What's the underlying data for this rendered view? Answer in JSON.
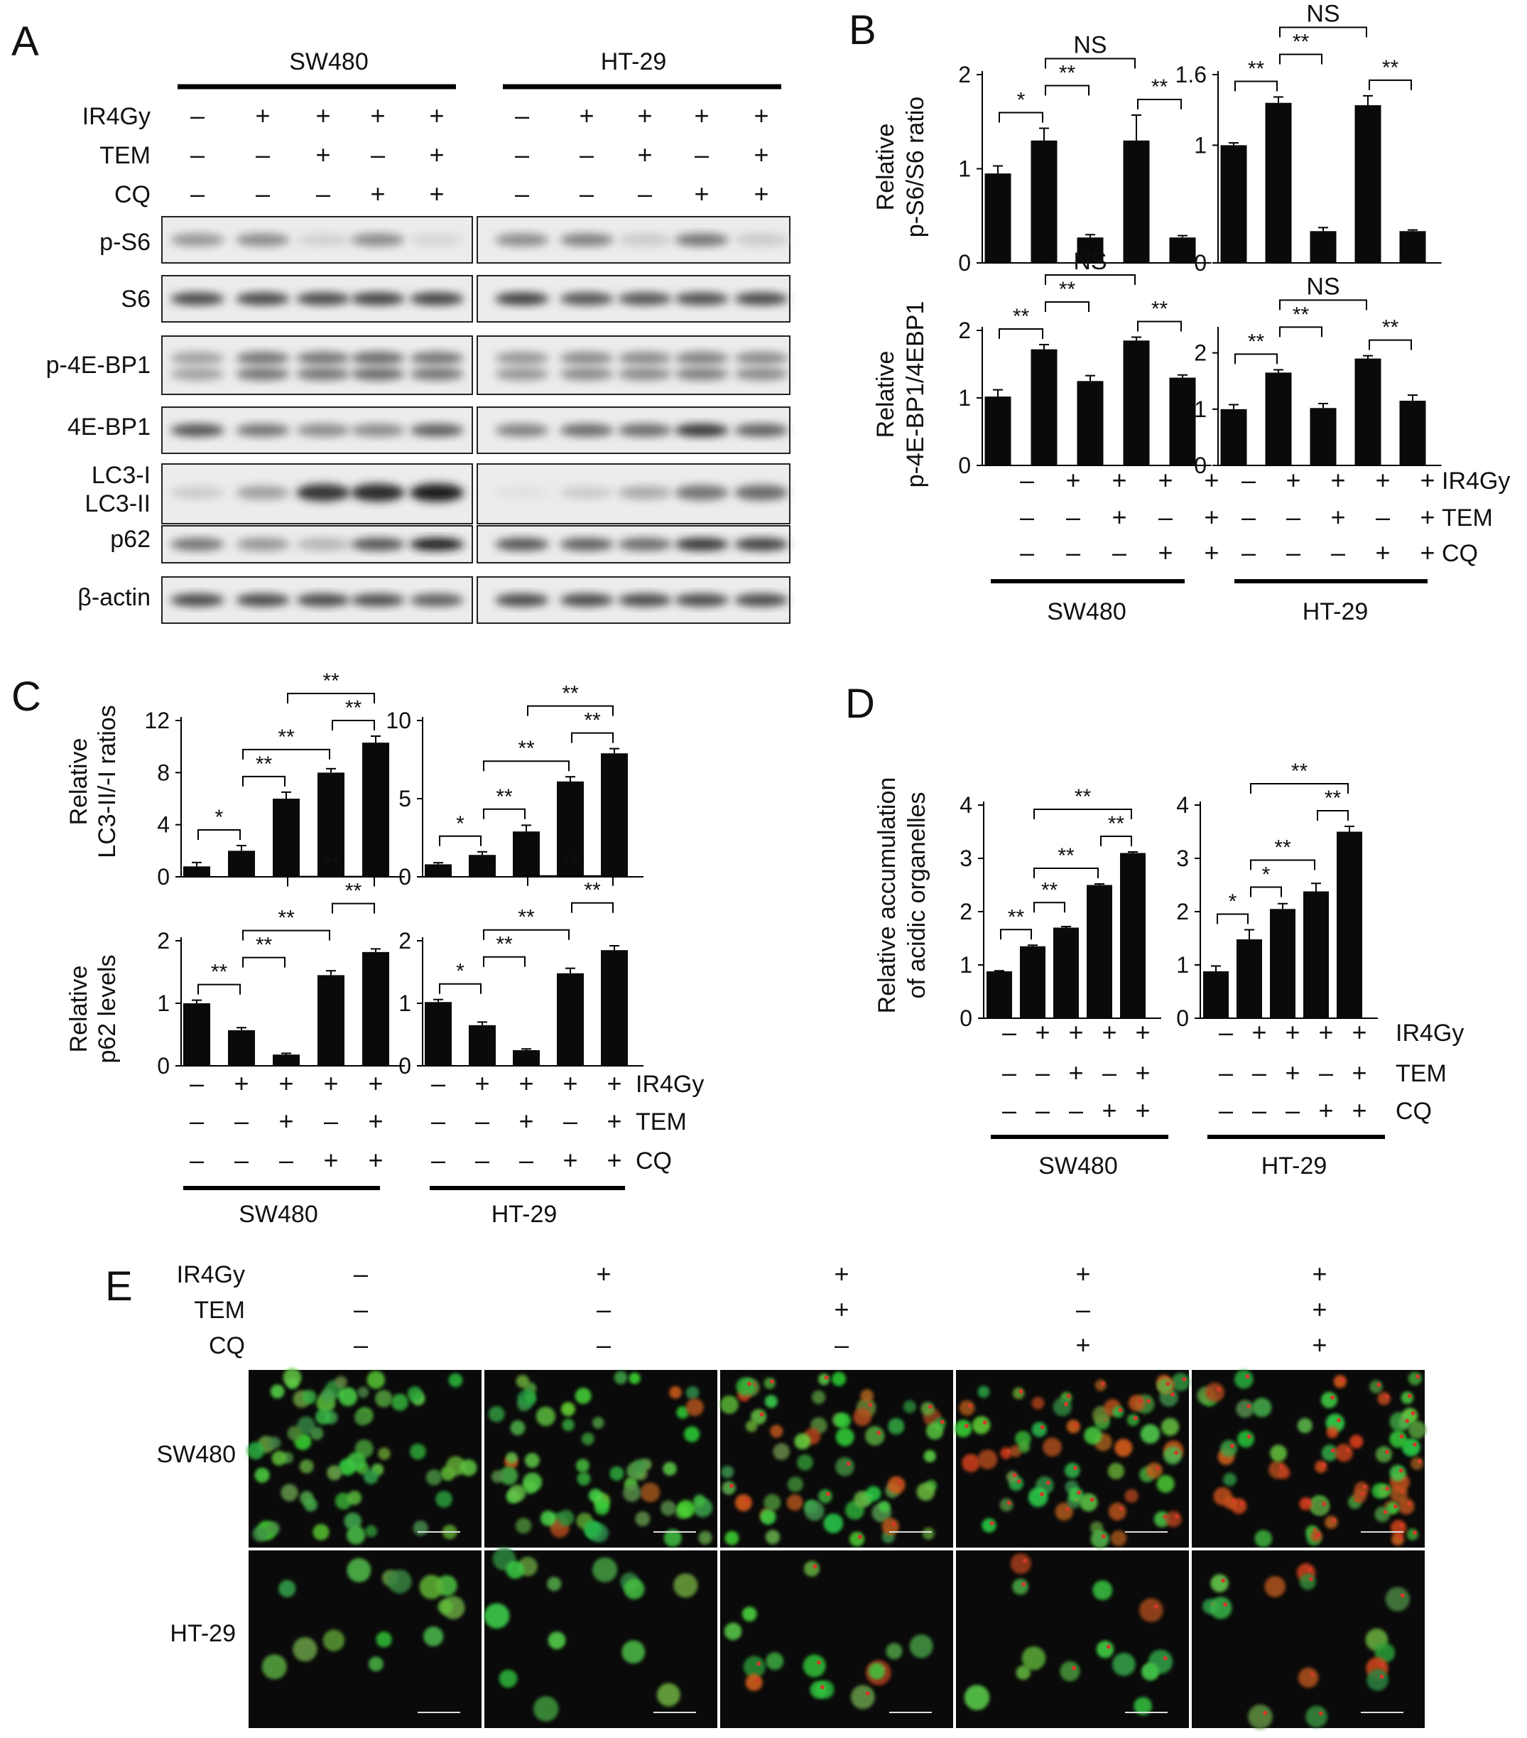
{
  "panels": {
    "A": "A",
    "B": "B",
    "C": "C",
    "D": "D",
    "E": "E"
  },
  "cell_lines": [
    "SW480",
    "HT-29"
  ],
  "treatments": [
    "IR4Gy",
    "TEM",
    "CQ"
  ],
  "conditions": {
    "IR4Gy": [
      "–",
      "+",
      "+",
      "+",
      "+"
    ],
    "TEM": [
      "–",
      "–",
      "+",
      "–",
      "+"
    ],
    "CQ": [
      "–",
      "–",
      "–",
      "+",
      "+"
    ]
  },
  "blot_rows": [
    "p-S6",
    "S6",
    "p-4E-BP1",
    "4E-BP1",
    "LC3-I",
    "LC3-II",
    "p62",
    "β-actin"
  ],
  "blot_intensity": {
    "SW480": {
      "p-S6": [
        0.4,
        0.45,
        0.12,
        0.45,
        0.1
      ],
      "S6": [
        0.75,
        0.75,
        0.75,
        0.78,
        0.78
      ],
      "p-4E-BP1": [
        0.35,
        0.55,
        0.55,
        0.6,
        0.55
      ],
      "4E-BP1": [
        0.7,
        0.55,
        0.45,
        0.45,
        0.65
      ],
      "LC3": [
        0.15,
        0.35,
        0.85,
        0.9,
        0.95
      ],
      "p62": [
        0.55,
        0.4,
        0.25,
        0.7,
        0.95
      ],
      "b-actin": [
        0.75,
        0.75,
        0.75,
        0.72,
        0.65
      ]
    },
    "HT-29": {
      "p-S6": [
        0.45,
        0.5,
        0.15,
        0.55,
        0.15
      ],
      "S6": [
        0.8,
        0.7,
        0.7,
        0.72,
        0.75
      ],
      "p-4E-BP1": [
        0.4,
        0.45,
        0.45,
        0.5,
        0.45
      ],
      "4E-BP1": [
        0.5,
        0.6,
        0.6,
        0.85,
        0.65
      ],
      "LC3": [
        0.05,
        0.15,
        0.3,
        0.55,
        0.6
      ],
      "p62": [
        0.7,
        0.65,
        0.6,
        0.85,
        0.8
      ],
      "b-actin": [
        0.75,
        0.75,
        0.75,
        0.75,
        0.75
      ]
    }
  },
  "chart_data": [
    {
      "panel": "B",
      "cell_line": "SW480",
      "type": "bar",
      "ylabel": "Relative p-S6/S6 ratio",
      "ylim": [
        0,
        2
      ],
      "yticks": [
        0,
        1,
        2
      ],
      "values": [
        0.95,
        1.3,
        0.27,
        1.3,
        0.27
      ],
      "errors": [
        0.08,
        0.13,
        0.03,
        0.27,
        0.02
      ],
      "annotations": [
        {
          "a": 0,
          "b": 1,
          "label": "*"
        },
        {
          "a": 1,
          "b": 2,
          "label": "**"
        },
        {
          "a": 3,
          "b": 4,
          "label": "**"
        },
        {
          "a": 1,
          "b": 3,
          "label": "NS"
        }
      ]
    },
    {
      "panel": "B",
      "cell_line": "HT-29",
      "type": "bar",
      "ylabel": "Relative p-S6/S6 ratio",
      "ylim": [
        0,
        1.6
      ],
      "yticks": [
        0,
        1,
        1.6
      ],
      "values": [
        1.0,
        1.36,
        0.27,
        1.34,
        0.27
      ],
      "errors": [
        0.02,
        0.05,
        0.03,
        0.08,
        0.01
      ],
      "annotations": [
        {
          "a": 0,
          "b": 1,
          "label": "**"
        },
        {
          "a": 1,
          "b": 2,
          "label": "**"
        },
        {
          "a": 3,
          "b": 4,
          "label": "**"
        },
        {
          "a": 1,
          "b": 3,
          "label": "NS"
        }
      ]
    },
    {
      "panel": "B",
      "cell_line": "SW480",
      "type": "bar",
      "ylabel": "Relative p-4E-BP1/4EBP1",
      "ylim": [
        0,
        2
      ],
      "yticks": [
        0,
        1,
        2
      ],
      "values": [
        1.02,
        1.72,
        1.25,
        1.85,
        1.3
      ],
      "errors": [
        0.1,
        0.07,
        0.08,
        0.05,
        0.04
      ],
      "annotations": [
        {
          "a": 0,
          "b": 1,
          "label": "**"
        },
        {
          "a": 1,
          "b": 2,
          "label": "**"
        },
        {
          "a": 3,
          "b": 4,
          "label": "**"
        },
        {
          "a": 1,
          "b": 3,
          "label": "NS"
        }
      ]
    },
    {
      "panel": "B",
      "cell_line": "HT-29",
      "type": "bar",
      "ylabel": "Relative p-4E-BP1/4EBP1",
      "ylim": [
        0,
        2.4
      ],
      "yticks": [
        0,
        1,
        2
      ],
      "values": [
        1.0,
        1.65,
        1.02,
        1.9,
        1.15
      ],
      "errors": [
        0.08,
        0.05,
        0.08,
        0.05,
        0.1
      ],
      "annotations": [
        {
          "a": 0,
          "b": 1,
          "label": "**"
        },
        {
          "a": 1,
          "b": 2,
          "label": "**"
        },
        {
          "a": 3,
          "b": 4,
          "label": "**"
        },
        {
          "a": 1,
          "b": 3,
          "label": "NS"
        }
      ]
    },
    {
      "panel": "C",
      "cell_line": "SW480",
      "type": "bar",
      "ylabel": "Relative LC3-II/-I ratios",
      "ylim": [
        0,
        12
      ],
      "yticks": [
        0,
        4,
        8,
        12
      ],
      "values": [
        0.8,
        2.0,
        6.0,
        8.0,
        10.3
      ],
      "errors": [
        0.3,
        0.4,
        0.5,
        0.3,
        0.5
      ],
      "annotations": [
        {
          "a": 0,
          "b": 1,
          "label": "*"
        },
        {
          "a": 1,
          "b": 2,
          "label": "**"
        },
        {
          "a": 1,
          "b": 3,
          "label": "**"
        },
        {
          "a": 3,
          "b": 4,
          "label": "**"
        },
        {
          "a": 2,
          "b": 4,
          "label": "**"
        }
      ]
    },
    {
      "panel": "C",
      "cell_line": "HT-29",
      "type": "bar",
      "ylabel": "Relative LC3-II/-I ratios",
      "ylim": [
        0,
        10
      ],
      "yticks": [
        0,
        5,
        10
      ],
      "values": [
        0.8,
        1.4,
        2.9,
        6.1,
        7.9
      ],
      "errors": [
        0.1,
        0.2,
        0.4,
        0.3,
        0.3
      ],
      "annotations": [
        {
          "a": 0,
          "b": 1,
          "label": "*"
        },
        {
          "a": 1,
          "b": 2,
          "label": "**"
        },
        {
          "a": 1,
          "b": 3,
          "label": "**"
        },
        {
          "a": 3,
          "b": 4,
          "label": "**"
        },
        {
          "a": 2,
          "b": 4,
          "label": "**"
        }
      ]
    },
    {
      "panel": "C",
      "cell_line": "SW480",
      "type": "bar",
      "ylabel": "Relative p62 levels",
      "ylim": [
        0,
        2
      ],
      "yticks": [
        0,
        1,
        2
      ],
      "values": [
        1.0,
        0.57,
        0.18,
        1.45,
        1.82
      ],
      "errors": [
        0.05,
        0.04,
        0.02,
        0.07,
        0.05
      ],
      "annotations": [
        {
          "a": 0,
          "b": 1,
          "label": "**"
        },
        {
          "a": 1,
          "b": 2,
          "label": "**"
        },
        {
          "a": 1,
          "b": 3,
          "label": "**"
        },
        {
          "a": 3,
          "b": 4,
          "label": "**"
        },
        {
          "a": 2,
          "b": 4,
          "label": "**"
        }
      ]
    },
    {
      "panel": "C",
      "cell_line": "HT-29",
      "type": "bar",
      "ylabel": "Relative p62 levels",
      "ylim": [
        0,
        2
      ],
      "yticks": [
        0,
        1,
        2
      ],
      "values": [
        1.02,
        0.65,
        0.25,
        1.48,
        1.85
      ],
      "errors": [
        0.04,
        0.05,
        0.02,
        0.08,
        0.07
      ],
      "annotations": [
        {
          "a": 0,
          "b": 1,
          "label": "*"
        },
        {
          "a": 1,
          "b": 2,
          "label": "**"
        },
        {
          "a": 1,
          "b": 3,
          "label": "**"
        },
        {
          "a": 3,
          "b": 4,
          "label": "**"
        },
        {
          "a": 2,
          "b": 4,
          "label": "**"
        }
      ]
    },
    {
      "panel": "D",
      "cell_line": "SW480",
      "type": "bar",
      "ylabel": "Relative accumulation of acidic organelles",
      "ylim": [
        0,
        4
      ],
      "yticks": [
        0,
        1,
        2,
        3,
        4
      ],
      "values": [
        0.88,
        1.35,
        1.7,
        2.5,
        3.1
      ],
      "errors": [
        0.01,
        0.02,
        0.02,
        0.02,
        0.02
      ],
      "annotations": [
        {
          "a": 0,
          "b": 1,
          "label": "**"
        },
        {
          "a": 1,
          "b": 2,
          "label": "**"
        },
        {
          "a": 1,
          "b": 3,
          "label": "**"
        },
        {
          "a": 3,
          "b": 4,
          "label": "**"
        },
        {
          "a": 1,
          "b": 4,
          "label": "**"
        }
      ]
    },
    {
      "panel": "D",
      "cell_line": "HT-29",
      "type": "bar",
      "ylabel": "Relative accumulation of acidic organelles",
      "ylim": [
        0,
        4
      ],
      "yticks": [
        0,
        1,
        2,
        3,
        4
      ],
      "values": [
        0.88,
        1.48,
        2.05,
        2.38,
        3.5
      ],
      "errors": [
        0.1,
        0.18,
        0.1,
        0.15,
        0.1
      ],
      "annotations": [
        {
          "a": 0,
          "b": 1,
          "label": "*"
        },
        {
          "a": 1,
          "b": 2,
          "label": "*"
        },
        {
          "a": 1,
          "b": 3,
          "label": "**"
        },
        {
          "a": 3,
          "b": 4,
          "label": "**"
        },
        {
          "a": 1,
          "b": 4,
          "label": "**"
        }
      ]
    }
  ],
  "microscopy": {
    "rows": [
      "SW480",
      "HT-29"
    ],
    "columns": 5,
    "red_fraction": [
      0.0,
      0.05,
      0.25,
      0.55,
      0.75
    ]
  }
}
